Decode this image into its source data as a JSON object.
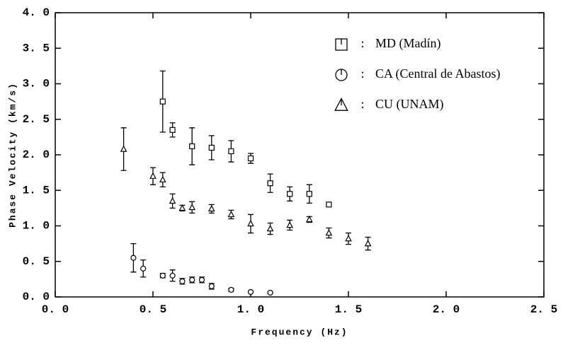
{
  "chart_data": {
    "type": "scatter",
    "x_label": "Frequency (Hz)",
    "y_label": "Phase Velocity (km/s)",
    "xlim": [
      0,
      2.5
    ],
    "ylim": [
      0,
      4
    ],
    "xticks": [
      {
        "value": 0,
        "label": "0. 0"
      },
      {
        "value": 0.5,
        "label": "0. 5"
      },
      {
        "value": 1,
        "label": "1. 0"
      },
      {
        "value": 1.5,
        "label": "1. 5"
      },
      {
        "value": 2,
        "label": "2. 0"
      },
      {
        "value": 2.5,
        "label": "2. 5"
      }
    ],
    "yticks": [
      {
        "value": 0,
        "label": "0. 0"
      },
      {
        "value": 0.5,
        "label": "0. 5"
      },
      {
        "value": 1,
        "label": "1. 0"
      },
      {
        "value": 1.5,
        "label": "1. 5"
      },
      {
        "value": 2,
        "label": "2. 0"
      },
      {
        "value": 2.5,
        "label": "2. 5"
      },
      {
        "value": 3,
        "label": "3. 0"
      },
      {
        "value": 3.5,
        "label": "3. 5"
      },
      {
        "value": 4,
        "label": "4. 0"
      }
    ],
    "legend_separator": ":",
    "series": [
      {
        "name": "MD (Madín)",
        "marker": "square",
        "color": "#000000",
        "x": [
          0.55,
          0.6,
          0.7,
          0.8,
          0.9,
          1.0,
          1.1,
          1.2,
          1.3,
          1.4
        ],
        "values": [
          2.75,
          2.35,
          2.12,
          2.1,
          2.05,
          1.95,
          1.6,
          1.45,
          1.45,
          1.3
        ],
        "errors": [
          0.43,
          0.1,
          0.26,
          0.17,
          0.15,
          0.07,
          0.13,
          0.1,
          0.13,
          0.03
        ]
      },
      {
        "name": "CA (Central de Abastos)",
        "marker": "circle",
        "color": "#000000",
        "x": [
          0.4,
          0.45,
          0.55,
          0.6,
          0.65,
          0.7,
          0.75,
          0.8,
          0.9,
          1.0,
          1.1
        ],
        "values": [
          0.55,
          0.4,
          0.3,
          0.3,
          0.22,
          0.24,
          0.24,
          0.15,
          0.1,
          0.07,
          0.06
        ],
        "errors": [
          0.2,
          0.12,
          0.03,
          0.08,
          0.04,
          0.04,
          0.04,
          0.04,
          0.02,
          0.01,
          0.01
        ]
      },
      {
        "name": "CU (UNAM)",
        "marker": "triangle",
        "color": "#000000",
        "x": [
          0.35,
          0.5,
          0.55,
          0.6,
          0.65,
          0.7,
          0.8,
          0.9,
          1.0,
          1.1,
          1.2,
          1.3,
          1.4,
          1.5,
          1.6
        ],
        "values": [
          2.08,
          1.7,
          1.65,
          1.35,
          1.25,
          1.26,
          1.24,
          1.16,
          1.03,
          0.96,
          1.01,
          1.09,
          0.9,
          0.82,
          0.75
        ],
        "errors": [
          0.3,
          0.12,
          0.1,
          0.1,
          0.04,
          0.08,
          0.06,
          0.06,
          0.13,
          0.08,
          0.07,
          0.04,
          0.07,
          0.08,
          0.09
        ]
      }
    ]
  }
}
